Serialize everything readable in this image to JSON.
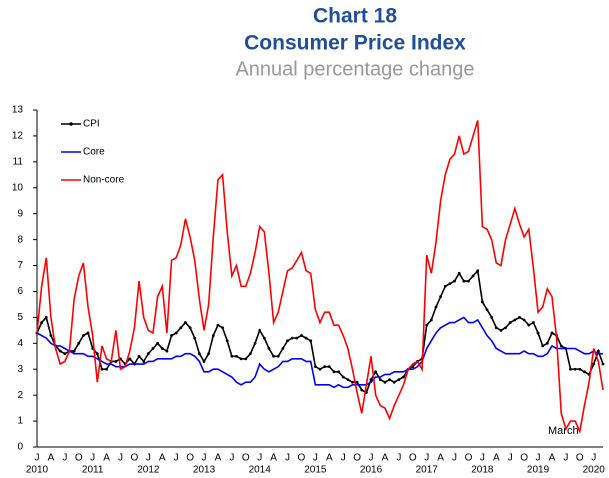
{
  "chart_data": {
    "type": "line",
    "title": "Chart 18",
    "title2": "Consumer Price Index",
    "subtitle": "Annual percentage change",
    "annotation": "March",
    "categories": [
      "J",
      null,
      null,
      "A",
      null,
      null,
      "J",
      null,
      null,
      "O",
      null,
      null,
      "J",
      null,
      null,
      "A",
      null,
      null,
      "J",
      null,
      null,
      "O",
      null,
      null,
      "J",
      null,
      null,
      "A",
      null,
      null,
      "J",
      null,
      null,
      "O",
      null,
      null,
      "J",
      null,
      null,
      "A",
      null,
      null,
      "J",
      null,
      null,
      "O",
      null,
      null,
      "J",
      null,
      null,
      "A",
      null,
      null,
      "J",
      null,
      null,
      "O",
      null,
      null,
      "J",
      null,
      null,
      "A",
      null,
      null,
      "J",
      null,
      null,
      "O",
      null,
      null,
      "J",
      null,
      null,
      "A",
      null,
      null,
      "J",
      null,
      null,
      "O",
      null,
      null,
      "J",
      null,
      null,
      "A",
      null,
      null,
      "J",
      null,
      null,
      "O",
      null,
      null,
      "J",
      null,
      null,
      "A",
      null,
      null,
      "J",
      null,
      null,
      "O",
      null,
      null,
      "J",
      null,
      null,
      "A",
      null,
      null,
      "J",
      null,
      null,
      "O",
      null,
      null,
      "J",
      null,
      null
    ],
    "years": [
      "2010",
      "2011",
      "2012",
      "2013",
      "2014",
      "2015",
      "2016",
      "2017",
      "2018",
      "2019",
      "2020"
    ],
    "ylim": [
      0,
      13
    ],
    "yticks": [
      0,
      1,
      2,
      3,
      4,
      5,
      6,
      7,
      8,
      9,
      10,
      11,
      12,
      13
    ],
    "legend": "upper-left",
    "series": [
      {
        "name": "CPI",
        "color": "#000000",
        "marker": true,
        "values": [
          4.4,
          4.8,
          5.0,
          4.3,
          3.9,
          3.7,
          3.6,
          3.7,
          3.7,
          4.0,
          4.3,
          4.4,
          3.8,
          3.6,
          3.0,
          3.0,
          3.3,
          3.3,
          3.4,
          3.2,
          3.4,
          3.2,
          3.5,
          3.3,
          3.6,
          3.8,
          4.0,
          3.8,
          3.7,
          4.3,
          4.4,
          4.6,
          4.8,
          4.6,
          4.2,
          3.6,
          3.3,
          3.6,
          4.3,
          4.7,
          4.6,
          4.1,
          3.5,
          3.5,
          3.4,
          3.4,
          3.6,
          4.0,
          4.5,
          4.2,
          3.8,
          3.5,
          3.5,
          3.8,
          4.1,
          4.2,
          4.2,
          4.3,
          4.2,
          4.1,
          3.1,
          3.0,
          3.1,
          3.1,
          2.9,
          2.9,
          2.7,
          2.6,
          2.5,
          2.5,
          2.2,
          2.1,
          2.6,
          2.9,
          2.6,
          2.5,
          2.6,
          2.5,
          2.6,
          2.7,
          3.0,
          3.1,
          3.3,
          3.4,
          4.7,
          4.9,
          5.4,
          5.8,
          6.2,
          6.3,
          6.4,
          6.7,
          6.4,
          6.4,
          6.6,
          6.8,
          5.6,
          5.3,
          5.0,
          4.6,
          4.5,
          4.6,
          4.8,
          4.9,
          5.0,
          4.9,
          4.7,
          4.8,
          4.4,
          3.9,
          4.0,
          4.4,
          4.3,
          3.9,
          3.8,
          3.0,
          3.0,
          3.0,
          2.9,
          2.8,
          3.2,
          3.7,
          3.2
        ]
      },
      {
        "name": "Core",
        "color": "#0000ff",
        "values": [
          4.4,
          4.3,
          4.2,
          4.0,
          3.9,
          3.9,
          3.8,
          3.7,
          3.6,
          3.6,
          3.6,
          3.5,
          3.5,
          3.4,
          3.3,
          3.2,
          3.2,
          3.1,
          3.1,
          3.1,
          3.2,
          3.2,
          3.2,
          3.2,
          3.3,
          3.3,
          3.4,
          3.4,
          3.4,
          3.4,
          3.5,
          3.5,
          3.6,
          3.6,
          3.5,
          3.3,
          2.9,
          2.9,
          3.0,
          3.0,
          2.9,
          2.8,
          2.7,
          2.5,
          2.4,
          2.5,
          2.5,
          2.7,
          3.2,
          3.0,
          2.9,
          3.0,
          3.1,
          3.3,
          3.3,
          3.4,
          3.4,
          3.4,
          3.3,
          3.3,
          2.4,
          2.4,
          2.4,
          2.4,
          2.3,
          2.4,
          2.3,
          2.3,
          2.4,
          2.4,
          2.4,
          2.4,
          2.5,
          2.7,
          2.7,
          2.8,
          2.8,
          2.9,
          2.9,
          2.9,
          3.0,
          3.0,
          3.1,
          3.3,
          3.8,
          4.1,
          4.4,
          4.6,
          4.7,
          4.8,
          4.8,
          4.9,
          5.0,
          4.8,
          4.8,
          4.9,
          4.6,
          4.3,
          4.1,
          3.8,
          3.7,
          3.6,
          3.6,
          3.6,
          3.6,
          3.7,
          3.6,
          3.6,
          3.5,
          3.5,
          3.6,
          3.9,
          3.8,
          3.8,
          3.8,
          3.8,
          3.8,
          3.7,
          3.6,
          3.6,
          3.7,
          3.6,
          3.6
        ]
      },
      {
        "name": "Non-core",
        "color": "#ff0000",
        "values": [
          4.4,
          6.2,
          7.3,
          5.0,
          3.8,
          3.2,
          3.3,
          3.7,
          5.7,
          6.6,
          7.1,
          5.4,
          4.3,
          2.5,
          3.9,
          3.4,
          3.3,
          4.5,
          3.0,
          3.1,
          3.7,
          4.6,
          6.4,
          5.0,
          4.5,
          4.4,
          5.8,
          6.2,
          4.4,
          7.2,
          7.3,
          7.8,
          8.8,
          8.1,
          7.2,
          5.7,
          4.5,
          5.5,
          8.1,
          10.3,
          10.5,
          8.3,
          6.6,
          7.0,
          6.2,
          6.2,
          6.7,
          7.5,
          8.5,
          8.3,
          6.7,
          4.8,
          5.2,
          6.0,
          6.8,
          6.9,
          7.2,
          7.5,
          6.8,
          6.7,
          5.3,
          4.8,
          5.2,
          5.2,
          4.7,
          4.7,
          4.3,
          3.8,
          3.0,
          2.1,
          1.3,
          2.4,
          3.5,
          2.0,
          1.6,
          1.5,
          1.1,
          1.6,
          2.0,
          2.4,
          3.0,
          3.2,
          3.3,
          3.0,
          7.4,
          6.7,
          7.9,
          9.5,
          10.5,
          11.1,
          11.3,
          12.0,
          11.3,
          11.4,
          12.0,
          12.6,
          8.5,
          8.4,
          8.0,
          7.1,
          7.0,
          8.0,
          8.6,
          9.2,
          8.6,
          8.1,
          8.4,
          6.9,
          5.2,
          5.4,
          6.1,
          5.8,
          4.2,
          1.3,
          0.7,
          1.0,
          1.0,
          0.6,
          1.6,
          2.5,
          3.8,
          3.3,
          2.2
        ]
      }
    ]
  }
}
